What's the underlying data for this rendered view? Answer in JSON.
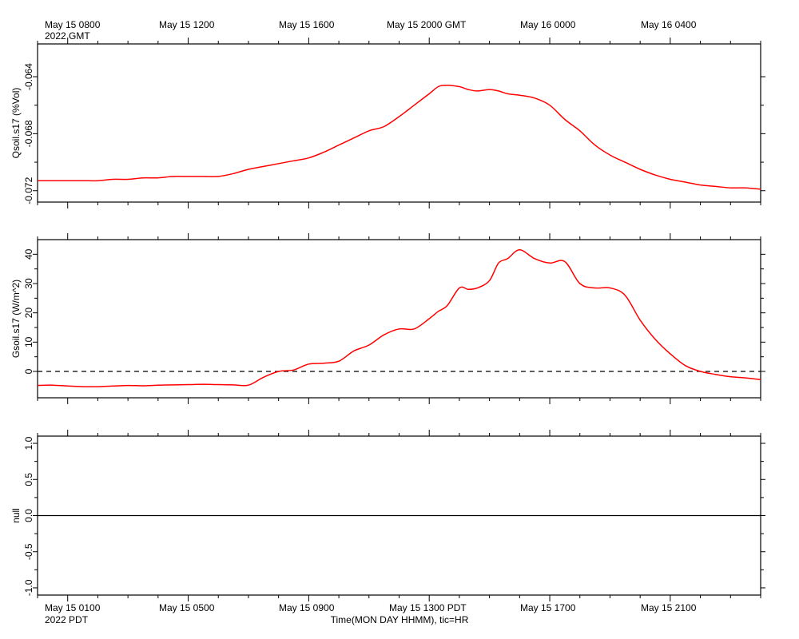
{
  "top_axis": {
    "ticks": [
      "May 15 0800",
      "May 15 1200",
      "May 15 1600",
      "May 15 2000 GMT",
      "May 16 0000",
      "May 16 0400"
    ],
    "year": "2022 GMT"
  },
  "bottom_axis": {
    "ticks": [
      "May 15 0100",
      "May 15 0500",
      "May 15 0900",
      "May 15 1300 PDT",
      "May 15 1700",
      "May 15 2100"
    ],
    "year": "2022 PDT",
    "title": "Time(MON DAY HHMM), tic=HR"
  },
  "colors": {
    "series": "#ff0000",
    "axis": "#000000"
  },
  "chart_data": [
    {
      "type": "line",
      "ylabel": "Qsoil.s17 (%Vol)",
      "ylim": [
        -0.0728,
        -0.0617
      ],
      "yticks": [
        -0.072,
        -0.068,
        -0.064
      ],
      "ytick_labels": [
        "-0.072",
        "-0.068",
        "-0.064"
      ],
      "x_hours_pdt": "May 15 00:00 to May 15 24:00 PDT",
      "series": [
        {
          "x": [
            0,
            0.5,
            1,
            1.5,
            2,
            2.5,
            3,
            3.5,
            4,
            4.5,
            5,
            5.5,
            6,
            6.5,
            7,
            7.5,
            8,
            8.5,
            9,
            9.5,
            10,
            10.5,
            11,
            11.5,
            12,
            12.5,
            13,
            13.3,
            13.6,
            14,
            14.3,
            14.6,
            15,
            15.3,
            15.6,
            16,
            16.5,
            17,
            17.5,
            18,
            18.5,
            19,
            19.5,
            20,
            20.5,
            21,
            21.5,
            22,
            22.5,
            23,
            23.5,
            24
          ],
          "values": [
            -0.0713,
            -0.0713,
            -0.0713,
            -0.0713,
            -0.0713,
            -0.0712,
            -0.0712,
            -0.0711,
            -0.0711,
            -0.071,
            -0.071,
            -0.071,
            -0.071,
            -0.0708,
            -0.0705,
            -0.0703,
            -0.0701,
            -0.0699,
            -0.0697,
            -0.0693,
            -0.0688,
            -0.0683,
            -0.0678,
            -0.0675,
            -0.0668,
            -0.066,
            -0.0652,
            -0.0647,
            -0.0646,
            -0.0647,
            -0.0649,
            -0.065,
            -0.0649,
            -0.065,
            -0.0652,
            -0.0653,
            -0.0655,
            -0.066,
            -0.067,
            -0.0678,
            -0.0688,
            -0.0695,
            -0.07,
            -0.0705,
            -0.0709,
            -0.0712,
            -0.0714,
            -0.0716,
            -0.0717,
            -0.0718,
            -0.0718,
            -0.0719
          ]
        }
      ]
    },
    {
      "type": "line",
      "ylabel": "Gsoil.s17 (W/m^2)",
      "ylim": [
        -9,
        45
      ],
      "yticks": [
        0,
        10,
        20,
        30,
        40
      ],
      "ytick_labels": [
        "0",
        "10",
        "20",
        "30",
        "40"
      ],
      "zero_line": "dashed",
      "series": [
        {
          "x": [
            0,
            0.5,
            1,
            1.5,
            2,
            2.5,
            3,
            3.5,
            4,
            4.5,
            5,
            5.5,
            6,
            6.5,
            7,
            7.5,
            8,
            8.5,
            9,
            9.5,
            10,
            10.5,
            11,
            11.5,
            12,
            12.5,
            13,
            13.3,
            13.6,
            14,
            14.3,
            14.6,
            15,
            15.3,
            15.6,
            16,
            16.5,
            17,
            17.5,
            18,
            18.5,
            19,
            19.5,
            20,
            20.5,
            21,
            21.5,
            22,
            22.5,
            23,
            23.5,
            24
          ],
          "values": [
            -4.8,
            -4.7,
            -5.0,
            -5.2,
            -5.2,
            -5.0,
            -4.8,
            -4.9,
            -4.7,
            -4.6,
            -4.5,
            -4.4,
            -4.5,
            -4.6,
            -4.7,
            -2.0,
            0.0,
            0.5,
            2.5,
            2.8,
            3.5,
            7.0,
            9.0,
            12.5,
            14.5,
            14.5,
            18.0,
            20.5,
            22.5,
            28.5,
            28.0,
            28.5,
            31.0,
            37.0,
            38.5,
            41.5,
            38.5,
            37.0,
            37.5,
            30.0,
            28.5,
            28.5,
            26.0,
            17.5,
            11.0,
            6.0,
            2.0,
            0.0,
            -1.0,
            -1.8,
            -2.2,
            -2.8
          ]
        }
      ]
    },
    {
      "type": "line",
      "ylabel": "null",
      "ylim": [
        -1.1,
        1.1
      ],
      "yticks": [
        -1.0,
        -0.5,
        0.0,
        0.5,
        1.0
      ],
      "ytick_labels": [
        "-1.0",
        "-0.5",
        "0.0",
        "0.5",
        "1.0"
      ],
      "zero_line": "solid",
      "series": []
    }
  ]
}
